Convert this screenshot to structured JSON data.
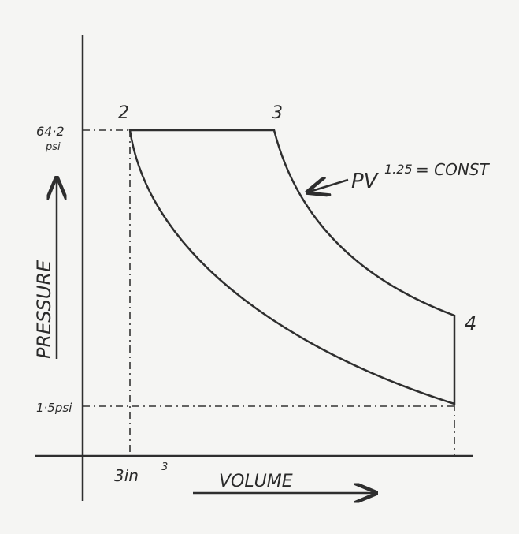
{
  "points": {
    "p2": "2",
    "p3": "3",
    "p4": "4"
  },
  "axes": {
    "y_label": "PRESSURE",
    "x_label": "VOLUME"
  },
  "markers": {
    "p_high": "64·2",
    "p_high_unit": "psi",
    "p_low": "1·5psi",
    "v_low": "3in",
    "v_low_exp": "3"
  },
  "equation": {
    "base": "PV",
    "exponent": "1.25",
    "rest": "= CONST"
  }
}
